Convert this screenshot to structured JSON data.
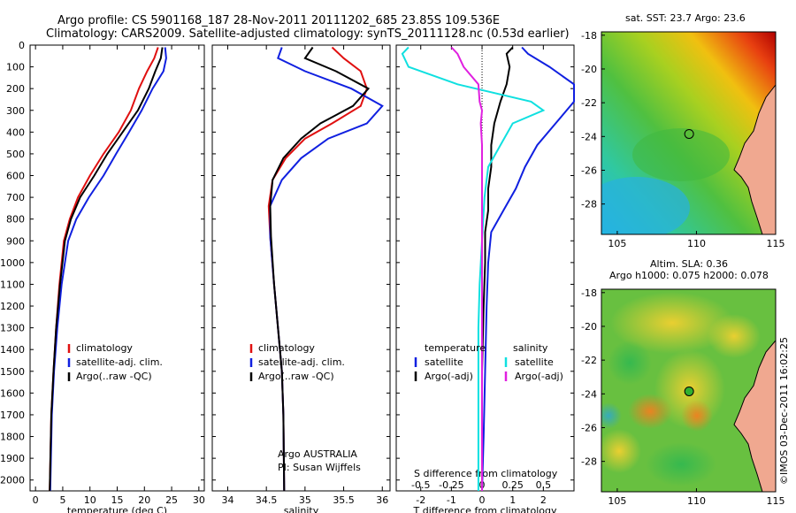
{
  "header": {
    "title_line1": "Argo profile: CS 5901168_187 28-Nov-2011 20111202_685 23.85S 109.536E",
    "title_line2": "Climatology: CARS2009. Satellite-adjusted climatology: synTS_20111128.nc (0.53d earlier)"
  },
  "stamp": "©IMOS 03-Dec-2011 16:02:25",
  "colors": {
    "climatology": "#e01010",
    "satellite": "#1020e0",
    "argo": "#000000",
    "satellite_sdiff": "#10e0e0",
    "argo_sdiff": "#e020e0"
  },
  "chart_data": [
    {
      "type": "line",
      "panel": "temperature",
      "xlabel": "temperature (deg C)",
      "ylabel": "",
      "xlim": [
        -1,
        31
      ],
      "ylim": [
        0,
        2050
      ],
      "y_inverted": true,
      "xticks": [
        "0",
        "5",
        "10",
        "15",
        "20",
        "25",
        "30"
      ],
      "xtick_values": [
        0,
        5,
        10,
        15,
        20,
        25,
        30
      ],
      "yticks": [
        "0",
        "100",
        "200",
        "300",
        "400",
        "500",
        "600",
        "700",
        "800",
        "900",
        "1000",
        "1100",
        "1200",
        "1300",
        "1400",
        "1500",
        "1600",
        "1700",
        "1800",
        "1900",
        "2000"
      ],
      "ytick_values": [
        0,
        100,
        200,
        300,
        400,
        500,
        600,
        700,
        800,
        900,
        1000,
        1100,
        1200,
        1300,
        1400,
        1500,
        1600,
        1700,
        1800,
        1900,
        2000
      ],
      "legend": [
        "climatology",
        "satellite-adj. clim.",
        "Argo(..raw -QC)"
      ],
      "series": [
        {
          "name": "climatology",
          "color": "#e01010",
          "x": [
            22.5,
            21.8,
            20.5,
            19.0,
            17.5,
            15.3,
            12.5,
            10.0,
            7.8,
            6.3,
            5.2,
            4.4,
            3.8,
            3.3,
            2.9,
            2.6
          ],
          "y": [
            10,
            60,
            120,
            200,
            300,
            400,
            500,
            600,
            700,
            800,
            900,
            1100,
            1300,
            1500,
            1700,
            2050
          ]
        },
        {
          "name": "satellite-adj. clim.",
          "color": "#1020e0",
          "x": [
            23.8,
            24.0,
            23.5,
            21.5,
            19.5,
            17.2,
            14.8,
            12.5,
            9.8,
            7.5,
            6.0,
            4.8,
            4.0,
            3.4,
            3.0,
            2.7
          ],
          "y": [
            10,
            60,
            120,
            200,
            300,
            400,
            500,
            600,
            700,
            800,
            900,
            1100,
            1300,
            1500,
            1700,
            2050
          ]
        },
        {
          "name": "Argo(..raw -QC)",
          "color": "#000000",
          "x": [
            23.3,
            23.0,
            22.0,
            20.8,
            18.8,
            16.0,
            13.2,
            10.8,
            8.2,
            6.5,
            5.4,
            4.5,
            3.8,
            3.3,
            2.9,
            2.6
          ],
          "y": [
            10,
            60,
            120,
            200,
            300,
            400,
            500,
            600,
            700,
            800,
            900,
            1100,
            1300,
            1500,
            1700,
            2050
          ]
        }
      ]
    },
    {
      "type": "line",
      "panel": "salinity",
      "xlabel": "salinity",
      "xlim": [
        33.8,
        36.1
      ],
      "ylim": [
        0,
        2050
      ],
      "y_inverted": true,
      "xticks": [
        "34",
        "34.5",
        "35",
        "35.5",
        "36"
      ],
      "xtick_values": [
        34,
        34.5,
        35,
        35.5,
        36
      ],
      "legend": [
        "climatology",
        "satellite-adj. clim.",
        "Argo(..raw -QC)"
      ],
      "annotation": [
        "Argo AUSTRALIA",
        "PI: Susan Wijffels"
      ],
      "series": [
        {
          "name": "climatology",
          "color": "#e01010",
          "x": [
            35.35,
            35.5,
            35.72,
            35.8,
            35.72,
            35.35,
            35.0,
            34.75,
            34.58,
            34.53,
            34.55,
            34.6,
            34.65,
            34.7,
            34.72,
            34.73
          ],
          "y": [
            10,
            60,
            120,
            200,
            280,
            360,
            430,
            520,
            620,
            740,
            880,
            1100,
            1300,
            1500,
            1700,
            2050
          ]
        },
        {
          "name": "satellite-adj. clim.",
          "color": "#1020e0",
          "x": [
            34.7,
            34.65,
            35.0,
            35.6,
            36.0,
            35.8,
            35.3,
            34.95,
            34.7,
            34.55,
            34.55,
            34.6,
            34.65,
            34.7,
            34.72,
            34.73
          ],
          "y": [
            10,
            60,
            120,
            200,
            280,
            360,
            430,
            520,
            620,
            740,
            880,
            1100,
            1300,
            1500,
            1700,
            2050
          ]
        },
        {
          "name": "Argo(..raw -QC)",
          "color": "#000000",
          "x": [
            35.1,
            35.0,
            35.4,
            35.82,
            35.62,
            35.2,
            34.95,
            34.72,
            34.58,
            34.55,
            34.56,
            34.6,
            34.65,
            34.7,
            34.72,
            34.73
          ],
          "y": [
            10,
            60,
            120,
            200,
            280,
            360,
            430,
            520,
            620,
            740,
            880,
            1100,
            1300,
            1500,
            1700,
            2050
          ]
        }
      ]
    },
    {
      "type": "line",
      "panel": "differences",
      "xlabel": "T difference from climatology",
      "xlabel_top": "S difference from climatology",
      "xlim": [
        -2.8,
        3.0
      ],
      "ylim": [
        0,
        2050
      ],
      "y_inverted": true,
      "xticks": [
        "-2",
        "-1",
        "0",
        "1",
        "2"
      ],
      "xtick_values": [
        -2,
        -1,
        0,
        1,
        2
      ],
      "sticks": [
        "-0.5",
        "-0.25",
        "0",
        "0.25",
        "0.5"
      ],
      "stick_values": [
        -0.5,
        -0.25,
        0,
        0.25,
        0.5
      ],
      "legend_headers": [
        "temperature",
        "salinity"
      ],
      "legend": [
        "satellite",
        "Argo(-adj)",
        "satellite",
        "Argo(-adj)"
      ],
      "series": [
        {
          "name": "satellite",
          "quantity": "temperature",
          "color": "#1020e0",
          "x": [
            1.3,
            1.5,
            2.2,
            3.0,
            3.0,
            2.4,
            1.8,
            1.4,
            1.1,
            0.7,
            0.3,
            0.2,
            0.15,
            0.1,
            0.05,
            0.0
          ],
          "y": [
            10,
            40,
            100,
            180,
            260,
            360,
            460,
            560,
            660,
            760,
            860,
            1000,
            1200,
            1500,
            1800,
            2050
          ]
        },
        {
          "name": "Argo(-adj)",
          "quantity": "temperature",
          "color": "#000000",
          "x": [
            1.0,
            0.8,
            0.9,
            0.8,
            0.6,
            0.4,
            0.3,
            0.3,
            0.2,
            0.2,
            0.1,
            0.1,
            0.05,
            0.0,
            0.0,
            0.0
          ],
          "y": [
            10,
            40,
            100,
            180,
            260,
            360,
            460,
            560,
            660,
            760,
            860,
            1000,
            1200,
            1500,
            1800,
            2050
          ]
        },
        {
          "name": "satellite",
          "quantity": "salinity",
          "color": "#10e0e0",
          "x": [
            -0.6,
            -0.65,
            -0.6,
            -0.2,
            0.4,
            0.5,
            0.25,
            0.15,
            0.05,
            0.02,
            0.0,
            -0.02,
            -0.03,
            -0.03,
            -0.03,
            -0.03
          ],
          "y": [
            10,
            40,
            100,
            180,
            260,
            300,
            360,
            460,
            560,
            700,
            900,
            1100,
            1300,
            1500,
            1800,
            2050
          ]
        },
        {
          "name": "Argo(-adj)",
          "quantity": "salinity",
          "color": "#e020e0",
          "x": [
            -0.25,
            -0.2,
            -0.15,
            -0.03,
            -0.02,
            0.0,
            -0.01,
            0.0,
            0.0,
            0.0,
            0.0,
            0.0,
            0.0,
            0.0,
            0.0,
            0.0
          ],
          "y": [
            10,
            40,
            100,
            180,
            260,
            300,
            360,
            460,
            560,
            700,
            900,
            1100,
            1300,
            1500,
            1800,
            2050
          ]
        }
      ]
    },
    {
      "type": "heatmap",
      "panel": "sst_map",
      "title": "sat. SST: 23.7  Argo: 23.6",
      "xlim": [
        104,
        115
      ],
      "ylim": [
        -29.8,
        -17.8
      ],
      "xticks": [
        "105",
        "110",
        "115"
      ],
      "xtick_values": [
        105,
        110,
        115
      ],
      "yticks": [
        "-18",
        "-20",
        "-22",
        "-24",
        "-26",
        "-28"
      ],
      "ytick_values": [
        -18,
        -20,
        -22,
        -24,
        -26,
        -28
      ],
      "marker": {
        "lon": 109.536,
        "lat": -23.85
      }
    },
    {
      "type": "heatmap",
      "panel": "sla_map",
      "title": "Altim. SLA: 0.36",
      "subtitle": "Argo h1000: 0.075  h2000: 0.078",
      "xlim": [
        104,
        115
      ],
      "ylim": [
        -29.8,
        -17.8
      ],
      "xticks": [
        "105",
        "110",
        "115"
      ],
      "xtick_values": [
        105,
        110,
        115
      ],
      "yticks": [
        "-18",
        "-20",
        "-22",
        "-24",
        "-26",
        "-28"
      ],
      "ytick_values": [
        -18,
        -20,
        -22,
        -24,
        -26,
        -28
      ],
      "marker": {
        "lon": 109.536,
        "lat": -23.85
      }
    }
  ]
}
